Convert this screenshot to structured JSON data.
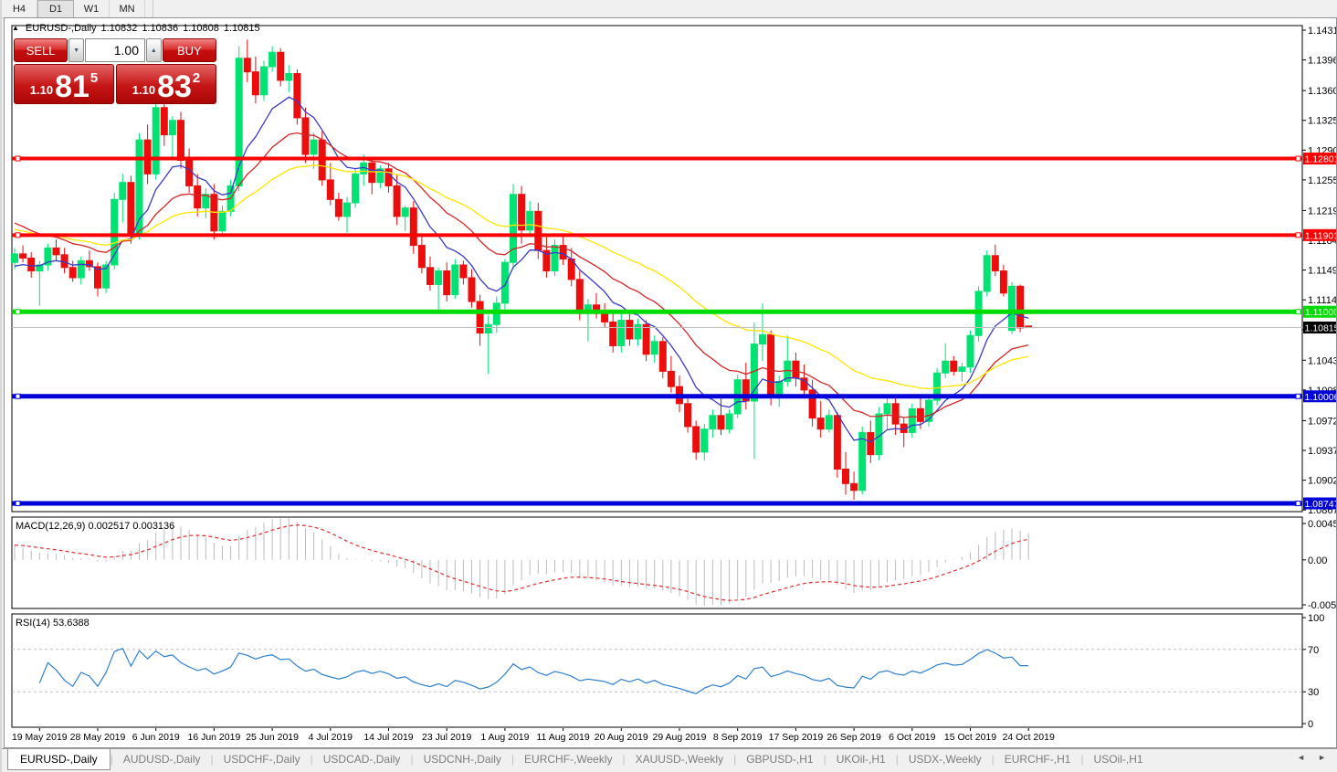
{
  "toolbar": {
    "timeframes": [
      {
        "label": "H4",
        "active": false
      },
      {
        "label": "D1",
        "active": true
      },
      {
        "label": "W1",
        "active": false
      },
      {
        "label": "MN",
        "active": false
      }
    ]
  },
  "chart": {
    "collapse_icon": "▲",
    "symbol_period": "EURUSD-,Daily"
  },
  "trade_panel": {
    "sell_label": "SELL",
    "buy_label": "BUY",
    "volume": "1.00",
    "spin_down": "▼",
    "spin_up": "▲",
    "sell_price_small": "1.10",
    "sell_price_big": "81",
    "sell_price_sup": "5",
    "buy_price_small": "1.10",
    "buy_price_big": "83",
    "buy_price_sup": "2"
  },
  "chart_data": {
    "type": "candlestick",
    "symbol_period": "EURUSD-,Daily",
    "ohlc_display": {
      "open": "1.10832",
      "high": "1.10836",
      "low": "1.10808",
      "close": "1.10815"
    },
    "price_axis_ticks": [
      "1.14310",
      "1.13960",
      "1.13600",
      "1.13250",
      "1.12900",
      "1.12550",
      "1.12190",
      "1.11840",
      "1.11490",
      "1.11140",
      "1.10790",
      "1.10430",
      "1.10080",
      "1.09720",
      "1.09370",
      "1.09020",
      "1.08670"
    ],
    "date_ticks": [
      "19 May 2019",
      "28 May 2019",
      "6 Jun 2019",
      "16 Jun 2019",
      "25 Jun 2019",
      "4 Jul 2019",
      "14 Jul 2019",
      "23 Jul 2019",
      "1 Aug 2019",
      "11 Aug 2019",
      "20 Aug 2019",
      "29 Aug 2019",
      "8 Sep 2019",
      "17 Sep 2019",
      "26 Sep 2019",
      "6 Oct 2019",
      "15 Oct 2019",
      "24 Oct 2019"
    ],
    "up_color": "#00E272",
    "down_color": "#EC0D0D",
    "horizontal_levels": [
      {
        "price": 1.12801,
        "label": "1.12801",
        "color": "#FF0000",
        "thickness": 4
      },
      {
        "price": 1.11901,
        "label": "1.11901",
        "color": "#FF0000",
        "thickness": 4
      },
      {
        "price": 1.11,
        "label": "1.11000",
        "color": "#00DC00",
        "thickness": 5
      },
      {
        "price": 1.10006,
        "label": "1.10006",
        "color": "#0000D8",
        "thickness": 5
      },
      {
        "price": 1.08747,
        "label": "1.08747",
        "color": "#0000D8",
        "thickness": 5
      }
    ],
    "current_price": {
      "price": 1.10815,
      "label": "1.10815",
      "line_color": "#BDBDBD",
      "badge_color": "#000000"
    },
    "moving_averages": [
      {
        "name": "ma-fast",
        "period": 9,
        "color": "#3A3AC8",
        "seed": 1.115
      },
      {
        "name": "ma-mid",
        "period": 20,
        "color": "#D42424",
        "seed": 1.1208
      },
      {
        "name": "ma-slow",
        "period": 40,
        "color": "#FFE400",
        "seed": 1.1198
      }
    ],
    "indicators": {
      "macd": {
        "label": "MACD(12,26,9) 0.002517 0.003136",
        "axis": [
          "0.004536",
          "0.00",
          "-0.005205"
        ],
        "fast": 12,
        "slow": 26,
        "signal": 9,
        "seed_fast": 1.1185,
        "seed_slow": 1.1165,
        "hist_color": "#BBBBBB",
        "signal_color": "#E03030"
      },
      "rsi": {
        "label": "RSI(14) 53.6388",
        "axis": [
          "100",
          "70",
          "30",
          "0"
        ],
        "period": 14,
        "levels": [
          70,
          30
        ],
        "line_color": "#2E7FD0",
        "level_color": "#BFBFBF"
      }
    },
    "candles": [
      [
        1.1158,
        1.1175,
        1.115,
        1.1168
      ],
      [
        1.1168,
        1.1178,
        1.1158,
        1.1163
      ],
      [
        1.1163,
        1.117,
        1.114,
        1.1148
      ],
      [
        1.1148,
        1.116,
        1.1107,
        1.1155
      ],
      [
        1.1155,
        1.118,
        1.1148,
        1.1175
      ],
      [
        1.1175,
        1.1185,
        1.116,
        1.1167
      ],
      [
        1.1167,
        1.1175,
        1.1145,
        1.1152
      ],
      [
        1.1152,
        1.116,
        1.1135,
        1.114
      ],
      [
        1.114,
        1.1165,
        1.1132,
        1.116
      ],
      [
        1.116,
        1.1172,
        1.1148,
        1.1153
      ],
      [
        1.1153,
        1.1158,
        1.1118,
        1.1128
      ],
      [
        1.1128,
        1.116,
        1.1122,
        1.1155
      ],
      [
        1.1155,
        1.124,
        1.115,
        1.1232
      ],
      [
        1.1232,
        1.1262,
        1.1205,
        1.1252
      ],
      [
        1.1252,
        1.126,
        1.118,
        1.1192
      ],
      [
        1.1192,
        1.131,
        1.1185,
        1.1302
      ],
      [
        1.1302,
        1.132,
        1.125,
        1.1262
      ],
      [
        1.1262,
        1.1348,
        1.1255,
        1.134
      ],
      [
        1.134,
        1.1355,
        1.1295,
        1.1308
      ],
      [
        1.1308,
        1.133,
        1.1282,
        1.1325
      ],
      [
        1.1325,
        1.1335,
        1.1268,
        1.1278
      ],
      [
        1.1278,
        1.1292,
        1.124,
        1.1248
      ],
      [
        1.1248,
        1.1262,
        1.1212,
        1.1222
      ],
      [
        1.1222,
        1.1245,
        1.121,
        1.1238
      ],
      [
        1.1238,
        1.125,
        1.1185,
        1.1195
      ],
      [
        1.1195,
        1.1225,
        1.1188,
        1.1218
      ],
      [
        1.1218,
        1.1255,
        1.1212,
        1.1248
      ],
      [
        1.1248,
        1.1412,
        1.1242,
        1.1398
      ],
      [
        1.1398,
        1.142,
        1.137,
        1.1382
      ],
      [
        1.1382,
        1.14,
        1.1345,
        1.1355
      ],
      [
        1.1355,
        1.1395,
        1.1348,
        1.1388
      ],
      [
        1.1388,
        1.1412,
        1.1382,
        1.1405
      ],
      [
        1.1405,
        1.141,
        1.1365,
        1.1372
      ],
      [
        1.1372,
        1.139,
        1.1358,
        1.138
      ],
      [
        1.138,
        1.1385,
        1.132,
        1.1328
      ],
      [
        1.1328,
        1.134,
        1.1275,
        1.1285
      ],
      [
        1.1285,
        1.131,
        1.1268,
        1.1302
      ],
      [
        1.1302,
        1.1312,
        1.1248,
        1.1255
      ],
      [
        1.1255,
        1.1275,
        1.1225,
        1.1232
      ],
      [
        1.1232,
        1.124,
        1.1207,
        1.1212
      ],
      [
        1.1212,
        1.1235,
        1.1193,
        1.1228
      ],
      [
        1.1228,
        1.1268,
        1.1222,
        1.1262
      ],
      [
        1.1262,
        1.1285,
        1.1248,
        1.1275
      ],
      [
        1.1275,
        1.128,
        1.1238,
        1.1252
      ],
      [
        1.1252,
        1.1272,
        1.1245,
        1.1268
      ],
      [
        1.1268,
        1.1275,
        1.124,
        1.1248
      ],
      [
        1.1248,
        1.1262,
        1.1202,
        1.1212
      ],
      [
        1.1212,
        1.1225,
        1.1195,
        1.1222
      ],
      [
        1.1222,
        1.123,
        1.1168,
        1.1178
      ],
      [
        1.1178,
        1.1188,
        1.1145,
        1.1152
      ],
      [
        1.1152,
        1.1165,
        1.1125,
        1.1132
      ],
      [
        1.1132,
        1.1152,
        1.1102,
        1.1148
      ],
      [
        1.1148,
        1.1158,
        1.1112,
        1.112
      ],
      [
        1.112,
        1.1162,
        1.1115,
        1.1155
      ],
      [
        1.1155,
        1.116,
        1.1132,
        1.114
      ],
      [
        1.114,
        1.115,
        1.1105,
        1.1112
      ],
      [
        1.1112,
        1.112,
        1.106,
        1.1075
      ],
      [
        1.1075,
        1.1096,
        1.1027,
        1.1085
      ],
      [
        1.1085,
        1.1118,
        1.1075,
        1.111
      ],
      [
        1.111,
        1.1162,
        1.1102,
        1.1158
      ],
      [
        1.1158,
        1.125,
        1.115,
        1.1238
      ],
      [
        1.1238,
        1.1248,
        1.118,
        1.1196
      ],
      [
        1.1196,
        1.123,
        1.1188,
        1.1218
      ],
      [
        1.1218,
        1.1228,
        1.1162,
        1.1172
      ],
      [
        1.1172,
        1.1192,
        1.114,
        1.1148
      ],
      [
        1.1148,
        1.1185,
        1.1142,
        1.1178
      ],
      [
        1.1178,
        1.119,
        1.1155,
        1.1162
      ],
      [
        1.1162,
        1.1175,
        1.113,
        1.1138
      ],
      [
        1.1138,
        1.1148,
        1.109,
        1.1098
      ],
      [
        1.1098,
        1.1115,
        1.1065,
        1.1108
      ],
      [
        1.1108,
        1.1122,
        1.1092,
        1.1098
      ],
      [
        1.1098,
        1.111,
        1.1082,
        1.1088
      ],
      [
        1.1088,
        1.1098,
        1.1052,
        1.106
      ],
      [
        1.106,
        1.1098,
        1.1052,
        1.109
      ],
      [
        1.109,
        1.1098,
        1.106,
        1.1068
      ],
      [
        1.1068,
        1.1092,
        1.106,
        1.1085
      ],
      [
        1.1085,
        1.109,
        1.1042,
        1.105
      ],
      [
        1.105,
        1.1072,
        1.104,
        1.1065
      ],
      [
        1.1065,
        1.107,
        1.1022,
        1.103
      ],
      [
        1.103,
        1.1048,
        1.1005,
        1.1012
      ],
      [
        1.1012,
        1.1025,
        1.0982,
        1.0992
      ],
      [
        1.0992,
        1.0998,
        1.0958,
        1.0965
      ],
      [
        1.0965,
        1.0972,
        1.0926,
        1.0935
      ],
      [
        1.0935,
        1.0968,
        1.0925,
        1.0962
      ],
      [
        1.0962,
        1.0985,
        1.0952,
        1.0978
      ],
      [
        1.0978,
        1.1,
        1.0955,
        1.0962
      ],
      [
        1.0962,
        1.0985,
        1.0957,
        1.098
      ],
      [
        1.098,
        1.1026,
        1.0975,
        1.102
      ],
      [
        1.102,
        1.104,
        1.0985,
        1.0995
      ],
      [
        1.0995,
        1.1087,
        1.0927,
        1.1062
      ],
      [
        1.1062,
        1.111,
        1.1042,
        1.1073
      ],
      [
        1.1073,
        1.1078,
        1.099,
        1.1002
      ],
      [
        1.1002,
        1.1025,
        1.0988,
        1.1018
      ],
      [
        1.1018,
        1.1072,
        1.1012,
        1.1042
      ],
      [
        1.1042,
        1.1052,
        1.1012,
        1.1022
      ],
      [
        1.1022,
        1.1038,
        1.0998,
        1.1008
      ],
      [
        1.1008,
        1.102,
        1.0965,
        1.0975
      ],
      [
        1.0975,
        1.0995,
        1.0952,
        1.0962
      ],
      [
        1.0962,
        1.0985,
        1.0958,
        1.0978
      ],
      [
        1.0978,
        1.0982,
        1.0905,
        1.0915
      ],
      [
        1.0915,
        1.0935,
        1.0885,
        1.0898
      ],
      [
        1.0898,
        1.0912,
        1.0879,
        1.089
      ],
      [
        1.089,
        1.0965,
        1.0885,
        1.0958
      ],
      [
        1.0958,
        1.0972,
        1.0922,
        1.0932
      ],
      [
        1.0932,
        1.0988,
        1.0925,
        1.098
      ],
      [
        1.098,
        1.0999,
        1.0962,
        1.0992
      ],
      [
        1.0992,
        1.1,
        1.0955,
        1.0968
      ],
      [
        1.0968,
        1.0975,
        1.0941,
        1.0958
      ],
      [
        1.0958,
        1.0992,
        1.0952,
        1.0986
      ],
      [
        1.0986,
        1.1,
        1.0962,
        1.0971
      ],
      [
        1.0971,
        1.1002,
        1.0965,
        1.0996
      ],
      [
        1.0996,
        1.1034,
        1.099,
        1.1028
      ],
      [
        1.1028,
        1.1063,
        1.1022,
        1.1042
      ],
      [
        1.1042,
        1.1048,
        1.1025,
        1.103
      ],
      [
        1.103,
        1.104,
        1.1018,
        1.1035
      ],
      [
        1.1035,
        1.1078,
        1.1028,
        1.1072
      ],
      [
        1.1072,
        1.113,
        1.1065,
        1.1124
      ],
      [
        1.1124,
        1.1172,
        1.1118,
        1.1166
      ],
      [
        1.1166,
        1.1179,
        1.1142,
        1.1148
      ],
      [
        1.1148,
        1.1155,
        1.1118,
        1.1122
      ],
      [
        1.1078,
        1.1135,
        1.1074,
        1.113
      ],
      [
        1.113,
        1.1132,
        1.1076,
        1.1081
      ],
      [
        1.10832,
        1.10836,
        1.10808,
        1.10815
      ]
    ]
  },
  "tabs": {
    "items": [
      {
        "label": "EURUSD-,Daily",
        "active": true
      },
      {
        "label": "AUDUSD-,Daily",
        "active": false
      },
      {
        "label": "USDCHF-,Daily",
        "active": false
      },
      {
        "label": "USDCAD-,Daily",
        "active": false
      },
      {
        "label": "USDCNH-,Daily",
        "active": false
      },
      {
        "label": "EURCHF-,Weekly",
        "active": false
      },
      {
        "label": "XAUUSD-,Weekly",
        "active": false
      },
      {
        "label": "GBPUSD-,H1",
        "active": false
      },
      {
        "label": "UKOil-,H1",
        "active": false
      },
      {
        "label": "USDX-,Weekly",
        "active": false
      },
      {
        "label": "EURCHF-,H1",
        "active": false
      },
      {
        "label": "USOil-,H1",
        "active": false
      }
    ],
    "scroll_left": "◄",
    "scroll_right": "►"
  }
}
